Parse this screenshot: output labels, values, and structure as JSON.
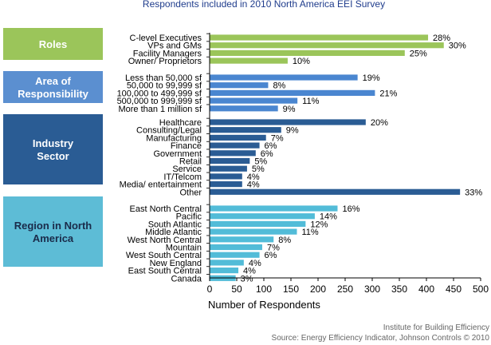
{
  "chart_data": {
    "type": "bar",
    "orientation": "horizontal",
    "title": "Respondents included in 2010 North America EEI Survey",
    "xlabel": "Number of Respondents",
    "xlim": [
      0,
      500
    ],
    "xticks": [
      0,
      50,
      100,
      150,
      200,
      250,
      300,
      350,
      400,
      450,
      500
    ],
    "grid": false,
    "groups": [
      {
        "name": "Roles",
        "color": "#9bc55a",
        "box_color": "#9bc55a",
        "box_text_color": "#ffffff",
        "bar_color": "#9bc55a",
        "bars": [
          {
            "label": "C-level Executives",
            "value": 403,
            "pct": "28%"
          },
          {
            "label": "VPs and GMs",
            "value": 432,
            "pct": "30%"
          },
          {
            "label": "Facility Managers",
            "value": 360,
            "pct": "25%"
          },
          {
            "label": "Owner/ Proprietors",
            "value": 144,
            "pct": "10%"
          }
        ]
      },
      {
        "name": "Area of Responsibility",
        "box_color": "#5b8fd0",
        "box_text_color": "#ffffff",
        "bar_color": "#4a86d0",
        "bars": [
          {
            "label": "Less than 50,000 sf",
            "value": 273,
            "pct": "19%"
          },
          {
            "label": "50,000 to 99,999 sf",
            "value": 108,
            "pct": "8%"
          },
          {
            "label": "100,000 to 499,999 sf",
            "value": 305,
            "pct": "21%"
          },
          {
            "label": "500,000 to 999,999 sf",
            "value": 162,
            "pct": "11%"
          },
          {
            "label": "More than 1 million sf",
            "value": 126,
            "pct": "9%"
          }
        ]
      },
      {
        "name": "Industry Sector",
        "box_color": "#2a5c94",
        "box_text_color": "#ffffff",
        "bar_color": "#2a5c94",
        "bars": [
          {
            "label": "Healthcare",
            "value": 288,
            "pct": "20%"
          },
          {
            "label": "Consulting/Legal",
            "value": 132,
            "pct": "9%"
          },
          {
            "label": "Manufacturing",
            "value": 104,
            "pct": "7%"
          },
          {
            "label": "Finance",
            "value": 92,
            "pct": "6%"
          },
          {
            "label": "Government",
            "value": 85,
            "pct": "6%"
          },
          {
            "label": "Retail",
            "value": 74,
            "pct": "5%"
          },
          {
            "label": "Service",
            "value": 69,
            "pct": "5%"
          },
          {
            "label": "IT/Telcom",
            "value": 60,
            "pct": "4%"
          },
          {
            "label": "Media/ entertainment",
            "value": 60,
            "pct": "4%"
          },
          {
            "label": "Other",
            "value": 462,
            "pct": "33%"
          }
        ]
      },
      {
        "name": "Region in North America",
        "box_color": "#5dbcd6",
        "box_text_color": "#1a2b4a",
        "bar_color": "#52bcd8",
        "bars": [
          {
            "label": "East North Central",
            "value": 236,
            "pct": "16%"
          },
          {
            "label": "Pacific",
            "value": 194,
            "pct": "14%"
          },
          {
            "label": "South Atlantic",
            "value": 177,
            "pct": "12%"
          },
          {
            "label": "Middle Atlantic",
            "value": 161,
            "pct": "11%"
          },
          {
            "label": "West North Central",
            "value": 118,
            "pct": "8%"
          },
          {
            "label": "Mountain",
            "value": 97,
            "pct": "7%"
          },
          {
            "label": "West South Central",
            "value": 92,
            "pct": "6%"
          },
          {
            "label": "New England",
            "value": 63,
            "pct": "4%"
          },
          {
            "label": "East South Central",
            "value": 53,
            "pct": "4%"
          },
          {
            "label": "Canada",
            "value": 48,
            "pct": "3%"
          }
        ]
      }
    ]
  },
  "credit": {
    "line1": "Institute for Building Efficiency",
    "line2": "Source: Energy Efficiency Indicator, Johnson Controls © 2010"
  }
}
